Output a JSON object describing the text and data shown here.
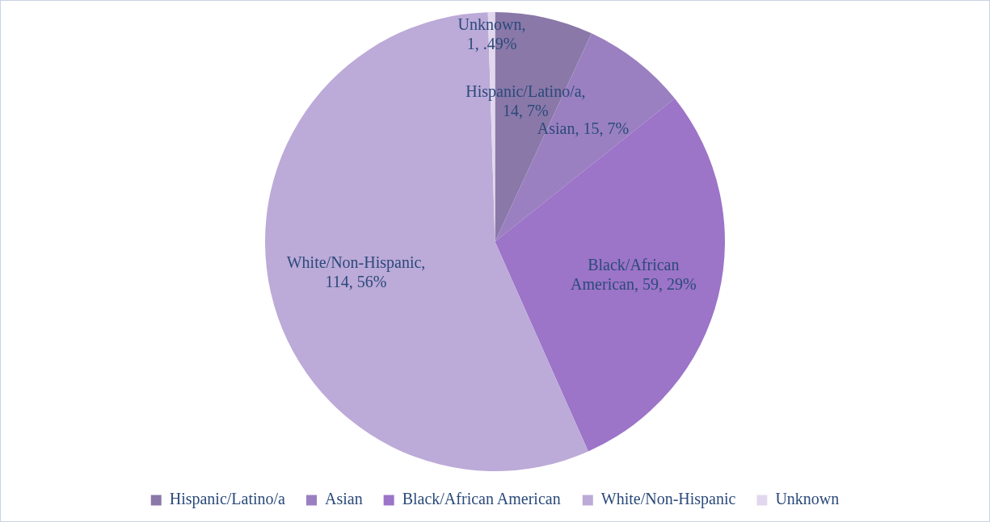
{
  "chart_data": {
    "type": "pie",
    "categories": [
      "Hispanic/Latino/a",
      "Asian",
      "Black/African American",
      "White/Non-Hispanic",
      "Unknown"
    ],
    "values": [
      14,
      15,
      59,
      114,
      1
    ],
    "colors": [
      "#8a78a8",
      "#9a80c0",
      "#9c74c8",
      "#bcaad8",
      "#e2d8ee"
    ],
    "value_labels": [
      "Hispanic/Latino/a, 14, 7%",
      "Asian, 15, 7%",
      "Black/African American, 59, 29%",
      "White/Non-Hispanic, 114, 56%",
      "Unknown, 1, .49%"
    ],
    "legend": "bottom"
  }
}
